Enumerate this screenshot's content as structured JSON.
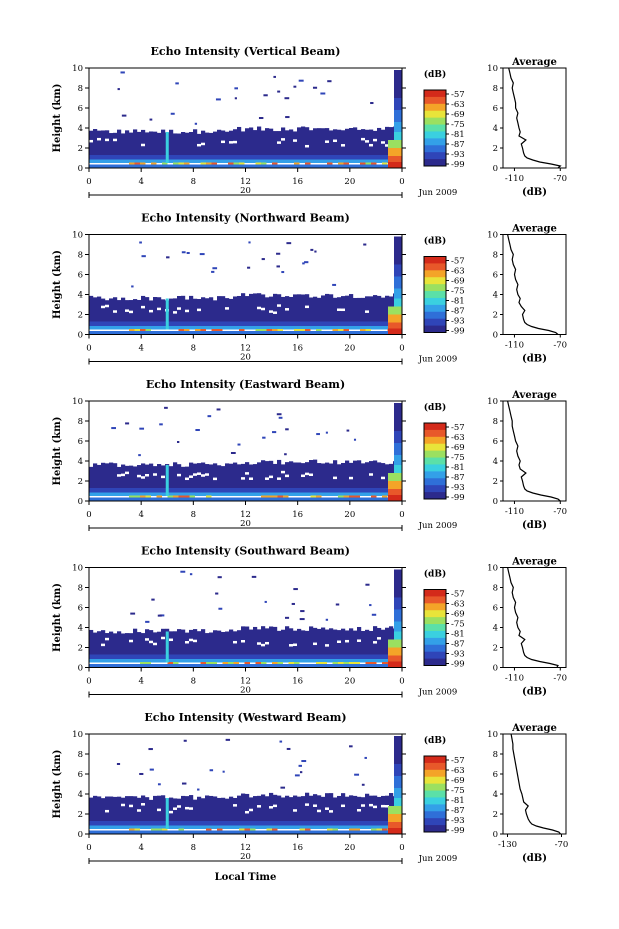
{
  "chart_data": [
    {
      "type": "heatmap",
      "title": "Echo Intensity (Vertical Beam)",
      "ylabel": "Height (km)",
      "ylim": [
        0,
        10
      ],
      "yticks": [
        "0",
        "2",
        "4",
        "6",
        "8",
        "10"
      ],
      "xticks": [
        "0",
        "4",
        "8",
        "12",
        "16",
        "20",
        "0"
      ],
      "day_label": "20",
      "date_label": "Jun 2009",
      "colorbar": {
        "unit": "(dB)",
        "ticks": [
          "-57",
          "-63",
          "-69",
          "-75",
          "-81",
          "-87",
          "-93",
          "-99"
        ]
      },
      "profile": {
        "title": "Average",
        "xlabel": "(dB)",
        "xticks": [
          "-110",
          "-70"
        ],
        "xlim": [
          -120,
          -65
        ],
        "yticks": [
          "0",
          "2",
          "4",
          "6",
          "8",
          "10"
        ],
        "heights": [
          0,
          0.2,
          0.4,
          0.6,
          0.8,
          1.0,
          1.2,
          1.5,
          2.0,
          2.4,
          2.8,
          3.2,
          3.6,
          4.0,
          4.5,
          5.0,
          5.5,
          6.0,
          6.5,
          7.0,
          7.5,
          8.0,
          8.5,
          9.0,
          9.5,
          10.0
        ],
        "values": [
          -72,
          -70,
          -78,
          -88,
          -94,
          -99,
          -101,
          -102,
          -103,
          -104,
          -100,
          -106,
          -105,
          -106,
          -107,
          -108,
          -107,
          -109,
          -109,
          -110,
          -111,
          -112,
          -111,
          -113,
          -114,
          -115
        ]
      },
      "colors": {
        "low": "#2b3ea0",
        "high": "#d42a1a"
      }
    },
    {
      "type": "heatmap",
      "title": "Echo Intensity (Northward Beam)",
      "ylabel": "Height (km)",
      "ylim": [
        0,
        10
      ],
      "yticks": [
        "0",
        "2",
        "4",
        "6",
        "8",
        "10"
      ],
      "xticks": [
        "0",
        "4",
        "8",
        "12",
        "16",
        "20",
        "0"
      ],
      "day_label": "20",
      "date_label": "Jun 2009",
      "colorbar": {
        "unit": "(dB)",
        "ticks": [
          "-57",
          "-63",
          "-69",
          "-75",
          "-81",
          "-87",
          "-93",
          "-99"
        ]
      },
      "profile": {
        "title": "Average",
        "xlabel": "(dB)",
        "xticks": [
          "-110",
          "-70"
        ],
        "xlim": [
          -120,
          -65
        ],
        "yticks": [
          "0",
          "2",
          "4",
          "6",
          "8",
          "10"
        ],
        "heights": [
          0,
          0.2,
          0.4,
          0.6,
          0.8,
          1.0,
          1.2,
          1.5,
          2.0,
          2.4,
          2.8,
          3.2,
          3.6,
          4.0,
          4.5,
          5.0,
          5.5,
          6.0,
          6.5,
          7.0,
          7.5,
          8.0,
          8.5,
          9.0,
          9.5,
          10.0
        ],
        "values": [
          -72,
          -74,
          -80,
          -89,
          -95,
          -99,
          -101,
          -102,
          -103,
          -101,
          -104,
          -106,
          -105,
          -107,
          -108,
          -107,
          -109,
          -110,
          -109,
          -111,
          -112,
          -111,
          -113,
          -114,
          -115,
          -116
        ]
      }
    },
    {
      "type": "heatmap",
      "title": "Echo Intensity (Eastward Beam)",
      "ylabel": "Height (km)",
      "ylim": [
        0,
        10
      ],
      "yticks": [
        "0",
        "2",
        "4",
        "6",
        "8",
        "10"
      ],
      "xticks": [
        "0",
        "4",
        "8",
        "12",
        "16",
        "20",
        "0"
      ],
      "day_label": "20",
      "date_label": "Jun 2009",
      "colorbar": {
        "unit": "(dB)",
        "ticks": [
          "-57",
          "-63",
          "-69",
          "-75",
          "-81",
          "-87",
          "-93",
          "-99"
        ]
      },
      "profile": {
        "title": "Average",
        "xlabel": "(dB)",
        "xticks": [
          "-110",
          "-70"
        ],
        "xlim": [
          -120,
          -65
        ],
        "yticks": [
          "0",
          "2",
          "4",
          "6",
          "8",
          "10"
        ],
        "heights": [
          0,
          0.2,
          0.4,
          0.6,
          0.8,
          1.0,
          1.2,
          1.5,
          2.0,
          2.4,
          2.8,
          3.2,
          3.6,
          4.0,
          4.5,
          5.0,
          5.5,
          6.0,
          6.5,
          7.0,
          7.5,
          8.0,
          8.5,
          9.0,
          9.5,
          10.0
        ],
        "values": [
          -70,
          -72,
          -78,
          -87,
          -94,
          -99,
          -101,
          -102,
          -103,
          -104,
          -100,
          -105,
          -106,
          -105,
          -107,
          -108,
          -107,
          -109,
          -110,
          -111,
          -112,
          -112,
          -113,
          -114,
          -115,
          -116
        ]
      }
    },
    {
      "type": "heatmap",
      "title": "Echo Intensity (Southward Beam)",
      "ylabel": "Height (km)",
      "ylim": [
        0,
        10
      ],
      "yticks": [
        "0",
        "2",
        "4",
        "6",
        "8",
        "10"
      ],
      "xticks": [
        "0",
        "4",
        "8",
        "12",
        "16",
        "20",
        "0"
      ],
      "day_label": "20",
      "date_label": "Jun 2009",
      "colorbar": {
        "unit": "(dB)",
        "ticks": [
          "-57",
          "-63",
          "-69",
          "-75",
          "-81",
          "-87",
          "-93",
          "-99"
        ]
      },
      "profile": {
        "title": "Average",
        "xlabel": "(dB)",
        "xticks": [
          "-110",
          "-70"
        ],
        "xlim": [
          -120,
          -65
        ],
        "yticks": [
          "0",
          "2",
          "4",
          "6",
          "8",
          "10"
        ],
        "heights": [
          0,
          0.2,
          0.4,
          0.6,
          0.8,
          1.0,
          1.2,
          1.5,
          2.0,
          2.4,
          2.8,
          3.2,
          3.6,
          4.0,
          4.5,
          5.0,
          5.5,
          6.0,
          6.5,
          7.0,
          7.5,
          8.0,
          8.5,
          9.0,
          9.5,
          10.0
        ],
        "values": [
          -73,
          -72,
          -79,
          -88,
          -95,
          -99,
          -101,
          -102,
          -103,
          -104,
          -101,
          -106,
          -105,
          -107,
          -108,
          -107,
          -109,
          -110,
          -109,
          -111,
          -112,
          -111,
          -113,
          -114,
          -115,
          -116
        ]
      }
    },
    {
      "type": "heatmap",
      "title": "Echo Intensity (Westward Beam)",
      "ylabel": "Height (km)",
      "ylim": [
        0,
        10
      ],
      "yticks": [
        "0",
        "2",
        "4",
        "6",
        "8",
        "10"
      ],
      "xticks": [
        "0",
        "4",
        "8",
        "12",
        "16",
        "20",
        "0"
      ],
      "day_label": "20",
      "date_label": "Jun 2009",
      "xlabel": "Local Time",
      "colorbar": {
        "unit": "(dB)",
        "ticks": [
          "-57",
          "-63",
          "-69",
          "-75",
          "-81",
          "-87",
          "-93",
          "-99"
        ]
      },
      "profile": {
        "title": "Average",
        "xlabel": "(dB)",
        "xticks": [
          "-130",
          "-70"
        ],
        "xlim": [
          -135,
          -65
        ],
        "yticks": [
          "0",
          "2",
          "4",
          "6",
          "8",
          "10"
        ],
        "heights": [
          0,
          0.2,
          0.4,
          0.6,
          0.8,
          1.0,
          1.2,
          1.5,
          2.0,
          2.4,
          2.8,
          3.2,
          3.6,
          4.0,
          4.5,
          5.0,
          5.5,
          6.0,
          6.5,
          7.0,
          7.5,
          8.0,
          8.5,
          9.0,
          9.5,
          10.0
        ],
        "values": [
          -71,
          -73,
          -80,
          -90,
          -98,
          -103,
          -105,
          -107,
          -109,
          -110,
          -107,
          -112,
          -113,
          -114,
          -116,
          -117,
          -118,
          -119,
          -120,
          -121,
          -122,
          -123,
          -124,
          -124,
          -125,
          -126
        ]
      }
    }
  ],
  "colors": {
    "scale": [
      "#2c2a8c",
      "#2f45b8",
      "#2f6fd8",
      "#33a0e8",
      "#3ad0e0",
      "#5be0a8",
      "#9be060",
      "#e8e43a",
      "#f4a428",
      "#e8582a",
      "#d42a1a"
    ]
  }
}
